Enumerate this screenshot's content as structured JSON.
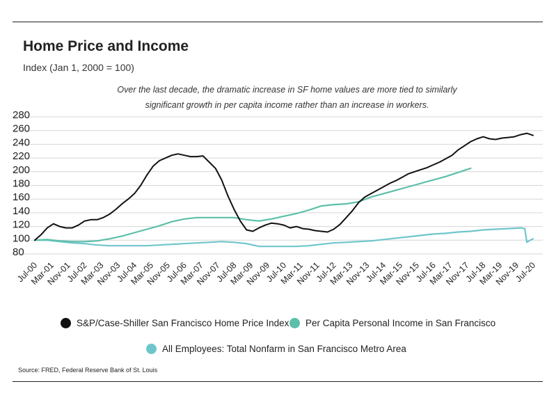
{
  "header": {
    "title": "Home Price and Income",
    "subtitle": "Index (Jan 1, 2000 = 100)",
    "note_line1": "Over the last decade, the dramatic increase in SF home values  are more tied to similarly",
    "note_line2": "significant growth in per capita income rather than an increase in workers."
  },
  "source": "Source:  FRED, Federal Reserve Bank of St. Louis",
  "chart_data": {
    "type": "line",
    "title": "Home Price and Income",
    "ylabel": "",
    "xlabel": "",
    "ylim": [
      80,
      280
    ],
    "yticks": [
      80,
      100,
      120,
      140,
      160,
      180,
      200,
      220,
      240,
      260,
      280
    ],
    "xlim": [
      "2000-07",
      "2020-07"
    ],
    "xticks": [
      "2000-07",
      "2001-03",
      "2001-11",
      "2002-07",
      "2003-03",
      "2003-11",
      "2004-07",
      "2005-03",
      "2005-11",
      "2006-07",
      "2007-03",
      "2007-11",
      "2008-07",
      "2009-03",
      "2009-11",
      "2010-07",
      "2011-03",
      "2011-11",
      "2012-07",
      "2013-03",
      "2013-11",
      "2014-07",
      "2015-03",
      "2015-11",
      "2016-07",
      "2017-03",
      "2017-11",
      "2018-07",
      "2019-03",
      "2019-11",
      "2020-07"
    ],
    "xtick_labels": [
      "Jul-00",
      "Mar-01",
      "Nov-01",
      "Jul-02",
      "Mar-03",
      "Nov-03",
      "Jul-04",
      "Mar-05",
      "Nov-05",
      "Jul-06",
      "Mar-07",
      "Nov-07",
      "Jul-08",
      "Mar-09",
      "Nov-09",
      "Jul-10",
      "Mar-11",
      "Nov-11",
      "Jul-12",
      "Mar-13",
      "Nov-13",
      "Jul-14",
      "Mar-15",
      "Nov-15",
      "Jul-16",
      "Mar-17",
      "Nov-17",
      "Jul-18",
      "Mar-19",
      "Nov-19",
      "Jul-20"
    ],
    "grid": "horizontal",
    "legend_position": "bottom",
    "series": [
      {
        "name": "S&P/Case-Shiller San Francisco Home Price Index",
        "color": "#111111",
        "x": [
          "2000-07",
          "2000-10",
          "2001-01",
          "2001-04",
          "2001-07",
          "2001-10",
          "2002-01",
          "2002-04",
          "2002-07",
          "2002-10",
          "2003-01",
          "2003-04",
          "2003-07",
          "2003-10",
          "2004-01",
          "2004-04",
          "2004-07",
          "2004-10",
          "2005-01",
          "2005-04",
          "2005-07",
          "2005-10",
          "2006-01",
          "2006-04",
          "2006-07",
          "2006-10",
          "2007-01",
          "2007-04",
          "2007-07",
          "2007-10",
          "2008-01",
          "2008-04",
          "2008-07",
          "2008-10",
          "2009-01",
          "2009-04",
          "2009-07",
          "2009-10",
          "2010-01",
          "2010-04",
          "2010-07",
          "2010-10",
          "2011-01",
          "2011-04",
          "2011-07",
          "2011-10",
          "2012-01",
          "2012-04",
          "2012-07",
          "2012-10",
          "2013-01",
          "2013-04",
          "2013-07",
          "2013-10",
          "2014-01",
          "2014-04",
          "2014-07",
          "2014-10",
          "2015-01",
          "2015-04",
          "2015-07",
          "2015-10",
          "2016-01",
          "2016-04",
          "2016-07",
          "2016-10",
          "2017-01",
          "2017-04",
          "2017-07",
          "2017-10",
          "2018-01",
          "2018-04",
          "2018-07",
          "2018-10",
          "2019-01",
          "2019-04",
          "2019-07",
          "2019-10",
          "2020-01",
          "2020-04",
          "2020-07"
        ],
        "values": [
          100,
          108,
          118,
          124,
          120,
          118,
          118,
          122,
          128,
          130,
          130,
          133,
          138,
          145,
          153,
          160,
          168,
          180,
          195,
          208,
          216,
          220,
          224,
          226,
          224,
          222,
          222,
          223,
          214,
          205,
          188,
          165,
          145,
          128,
          115,
          113,
          118,
          122,
          125,
          124,
          122,
          118,
          120,
          117,
          116,
          114,
          113,
          112,
          116,
          123,
          133,
          143,
          155,
          163,
          168,
          173,
          178,
          183,
          187,
          192,
          197,
          200,
          203,
          206,
          210,
          214,
          219,
          224,
          232,
          238,
          244,
          248,
          251,
          248,
          247,
          249,
          250,
          251,
          254,
          256,
          253
        ]
      },
      {
        "name": "Per Capita Personal Income in San Francisco",
        "color": "#5bbfa9",
        "x": [
          "2000-07",
          "2001-01",
          "2001-07",
          "2002-01",
          "2002-07",
          "2003-01",
          "2003-07",
          "2004-01",
          "2004-07",
          "2005-01",
          "2005-07",
          "2006-01",
          "2006-07",
          "2007-01",
          "2007-07",
          "2008-01",
          "2008-07",
          "2009-01",
          "2009-07",
          "2010-01",
          "2010-07",
          "2011-01",
          "2011-07",
          "2012-01",
          "2012-07",
          "2013-01",
          "2013-07",
          "2014-01",
          "2014-07",
          "2015-01",
          "2015-07",
          "2016-01",
          "2016-07",
          "2017-01",
          "2017-07",
          "2018-01"
        ],
        "values": [
          100,
          101,
          99,
          98,
          98,
          99,
          102,
          106,
          111,
          116,
          121,
          127,
          131,
          133,
          133,
          133,
          133,
          130,
          128,
          131,
          135,
          139,
          144,
          150,
          152,
          153,
          156,
          163,
          168,
          173,
          178,
          183,
          188,
          193,
          199,
          205
        ]
      },
      {
        "name": "All Employees: Total Nonfarm in San Francisco Metro Area",
        "color": "#6ec6cc",
        "x": [
          "2000-07",
          "2001-01",
          "2001-07",
          "2002-01",
          "2002-07",
          "2003-01",
          "2003-07",
          "2004-01",
          "2004-07",
          "2005-01",
          "2005-07",
          "2006-01",
          "2006-07",
          "2007-01",
          "2007-07",
          "2008-01",
          "2008-07",
          "2009-01",
          "2009-07",
          "2010-01",
          "2010-07",
          "2011-01",
          "2011-07",
          "2012-01",
          "2012-07",
          "2013-01",
          "2013-07",
          "2014-01",
          "2014-07",
          "2015-01",
          "2015-07",
          "2016-01",
          "2016-07",
          "2017-01",
          "2017-07",
          "2018-01",
          "2018-07",
          "2019-01",
          "2019-07",
          "2020-01",
          "2020-03",
          "2020-04",
          "2020-05",
          "2020-07"
        ],
        "values": [
          100,
          100,
          98,
          96,
          95,
          93,
          92,
          92,
          92,
          92,
          93,
          94,
          95,
          96,
          97,
          98,
          97,
          95,
          91,
          91,
          91,
          91,
          92,
          94,
          96,
          97,
          98,
          99,
          101,
          103,
          105,
          107,
          109,
          110,
          112,
          113,
          115,
          116,
          117,
          118,
          117,
          97,
          99,
          102
        ]
      }
    ]
  }
}
